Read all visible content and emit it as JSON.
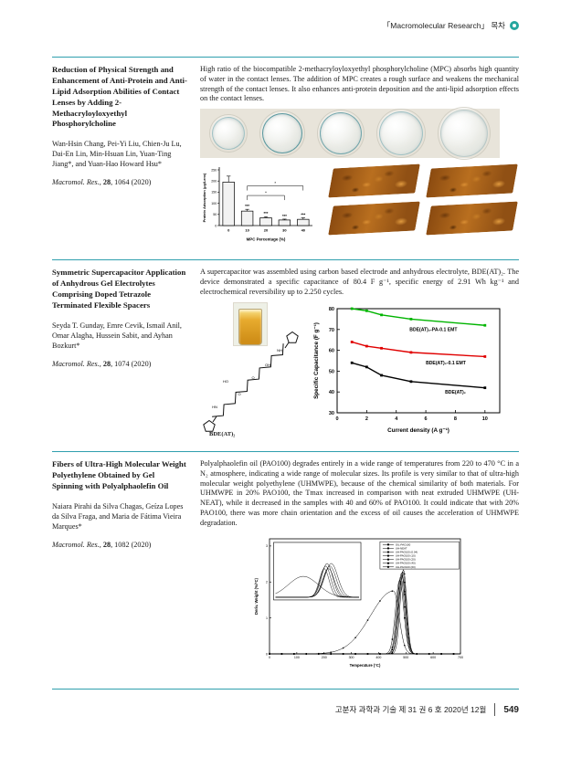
{
  "page": {
    "header": {
      "journal_toc_label": "「Macromolecular Research」 목차",
      "icon": "ring-icon",
      "accent_color": "#2f9fae"
    },
    "footer": {
      "issue_info": "고분자 과학과 기술 제 31 권 6 호 2020년 12월",
      "page_number": "549"
    }
  },
  "articles": [
    {
      "title": "Reduction of Physical Strength and Enhancement of Anti-Protein and Anti-Lipid Adsorption Abilities of Contact Lenses by Adding 2-Methacryloyloxyethyl Phosphorylcholine",
      "authors": "Wan-Hsin Chang, Pei-Yi Liu, Chien-Ju Lu, Dai-En Lin, Min-Hsuan Lin, Yuan-Ting Jiang*, and Yuan-Hao Howard Hsu*",
      "citation": {
        "journal": "Macromol. Res.,",
        "volume": "28",
        "pages": ", 1064 (2020)"
      },
      "abstract": "High ratio of the biocompatible 2-methacryloyloxyethyl phosphorylcholine (MPC) absorbs high quantity of water in the contact lenses. The addition of MPC creates a rough surface and weakens the mechanical strength of the contact lenses. It also enhances anti-protein deposition and the anti-lipid adsorption effects on the contact lenses."
    },
    {
      "title": "Symmetric Supercapacitor Application of Anhydrous Gel Electrolytes Comprising Doped Tetrazole Terminated Flexible Spacers",
      "authors": "Seyda T. Gunday, Emre Cevik, Ismail Anil, Omar Alagha, Hussein Sabit, and Ayhan Bozkurt*",
      "citation": {
        "journal": "Macromol. Res.,",
        "volume": "28",
        "pages": ", 1074 (2020)"
      },
      "abstract": "A supercapacitor was assembled using carbon based electrode and anhydrous electrolyte, BDE(AT)₂. The device demonstrated a specific capacitance of 80.4 F g⁻¹, specific energy of 2.91 Wh kg⁻¹ and electrochemical reversibility up to 2.250 cycles.",
      "figure_labels": {
        "structure": "BDE(AT)₂",
        "structure_atoms": [
          "HO",
          "O",
          "OH",
          "O",
          "HN",
          "NH"
        ]
      }
    },
    {
      "title": "Fibers of Ultra-High Molecular Weight Polyethylene Obtained by Gel Spinning with Polyalphaolefin Oil",
      "authors": "Naiara Pirahi da Silva Chagas, Geíza Lopes da Silva Fraga, and Maria de Fátima Vieira Marques*",
      "citation": {
        "journal": "Macromol. Res.,",
        "volume": "28",
        "pages": ", 1082 (2020)"
      },
      "abstract": "Polyalphaolefin oil (PAO100) degrades entirely in a wide range of temperatures from 220 to 470 °C in a N₂ atmosphere, indicating a wide range of molecular sizes. Its profile is very similar to that of ultra-high molecular weight polyethylene (UHMWPE), because of the chemical similarity of both materials. For UHMWPE in 20% PAO100, the Tmax increased in comparison with neat extruded UHMWPE (UH-NEAT), while it decreased in the samples with 40 and 60% of PAO100. It could indicate that with 20% PAO100, there was more chain orientation and the excess of oil causes the acceleration of UHMWPE degradation."
    }
  ],
  "chart_data": [
    {
      "type": "bar",
      "categories": [
        "0",
        "10",
        "20",
        "30",
        "40"
      ],
      "values": [
        195,
        65,
        35,
        25,
        28
      ],
      "errors": [
        27,
        8,
        5,
        4,
        7
      ],
      "bar_labels": [
        "",
        "***",
        "***",
        "***",
        "***"
      ],
      "brackets": [
        {
          "from": 1,
          "to": 3,
          "label": "*"
        },
        {
          "from": 1,
          "to": 4,
          "label": "*"
        }
      ],
      "bracket_levels": [
        135,
        178
      ],
      "xlabel": "MPC Percentage (%)",
      "ylabel": "Protein Adsorption (μg/Lens)",
      "ylim": [
        0,
        250
      ],
      "yticks": [
        0,
        50,
        100,
        150,
        200,
        250
      ],
      "grid": false
    },
    {
      "type": "line",
      "x": [
        1,
        2,
        3,
        5,
        10
      ],
      "series": [
        {
          "name": "BDE(AT)₂-PA-0.1 EMT",
          "color": "#00b400",
          "values": [
            80,
            79,
            77,
            75,
            72
          ]
        },
        {
          "name": "BDE(AT)₂-0.1 EMT",
          "color": "#e00000",
          "values": [
            64,
            62,
            61,
            59,
            57
          ]
        },
        {
          "name": "BDE(AT)₂",
          "color": "#000000",
          "values": [
            54,
            52,
            48,
            45,
            42
          ]
        }
      ],
      "xlabel": "Current density (A g⁻¹)",
      "ylabel": "Specific Capacitance (F g⁻¹)",
      "xlim": [
        0,
        11
      ],
      "xticks": [
        0,
        2,
        4,
        6,
        8,
        10
      ],
      "ylim": [
        30,
        80
      ],
      "yticks": [
        30,
        40,
        50,
        60,
        70,
        80
      ],
      "grid": false,
      "legend_position": "inline-labels"
    },
    {
      "type": "line",
      "xlabel": "Temperature (°C)",
      "ylabel": "Deriv. Weight (%/°C)",
      "xlim": [
        0,
        700
      ],
      "xticks": [
        0,
        100,
        200,
        300,
        400,
        500,
        600,
        700
      ],
      "ylim": [
        0,
        3.2
      ],
      "yticks": [
        0,
        1,
        2,
        3
      ],
      "legend_position": "top-right",
      "inset": {
        "present": true,
        "description": "magnified degradation-onset region"
      },
      "series": [
        {
          "name": "OIL-PAO100",
          "peak_center": 455,
          "peak_height": 1.75,
          "peak_width_left": 85,
          "peak_width_right": 20
        },
        {
          "name": "UH-NEAT",
          "peak_center": 488,
          "peak_height": 2.3,
          "peak_width": 13
        },
        {
          "name": "UH-PAO100 (0.04)",
          "peak_center": 484,
          "peak_height": 2.25,
          "peak_width": 14
        },
        {
          "name": "UH-PAO100 (10)",
          "peak_center": 486,
          "peak_height": 2.2,
          "peak_width": 13
        },
        {
          "name": "UH-PAO100 (20)",
          "peak_center": 491,
          "peak_height": 2.35,
          "peak_width": 12
        },
        {
          "name": "UH-PAO100 (40)",
          "peak_center": 481,
          "peak_height": 2.15,
          "peak_width": 14
        },
        {
          "name": "UH-PAO100 (60)",
          "peak_center": 477,
          "peak_height": 2.05,
          "peak_width": 15
        }
      ],
      "grid": false
    }
  ]
}
